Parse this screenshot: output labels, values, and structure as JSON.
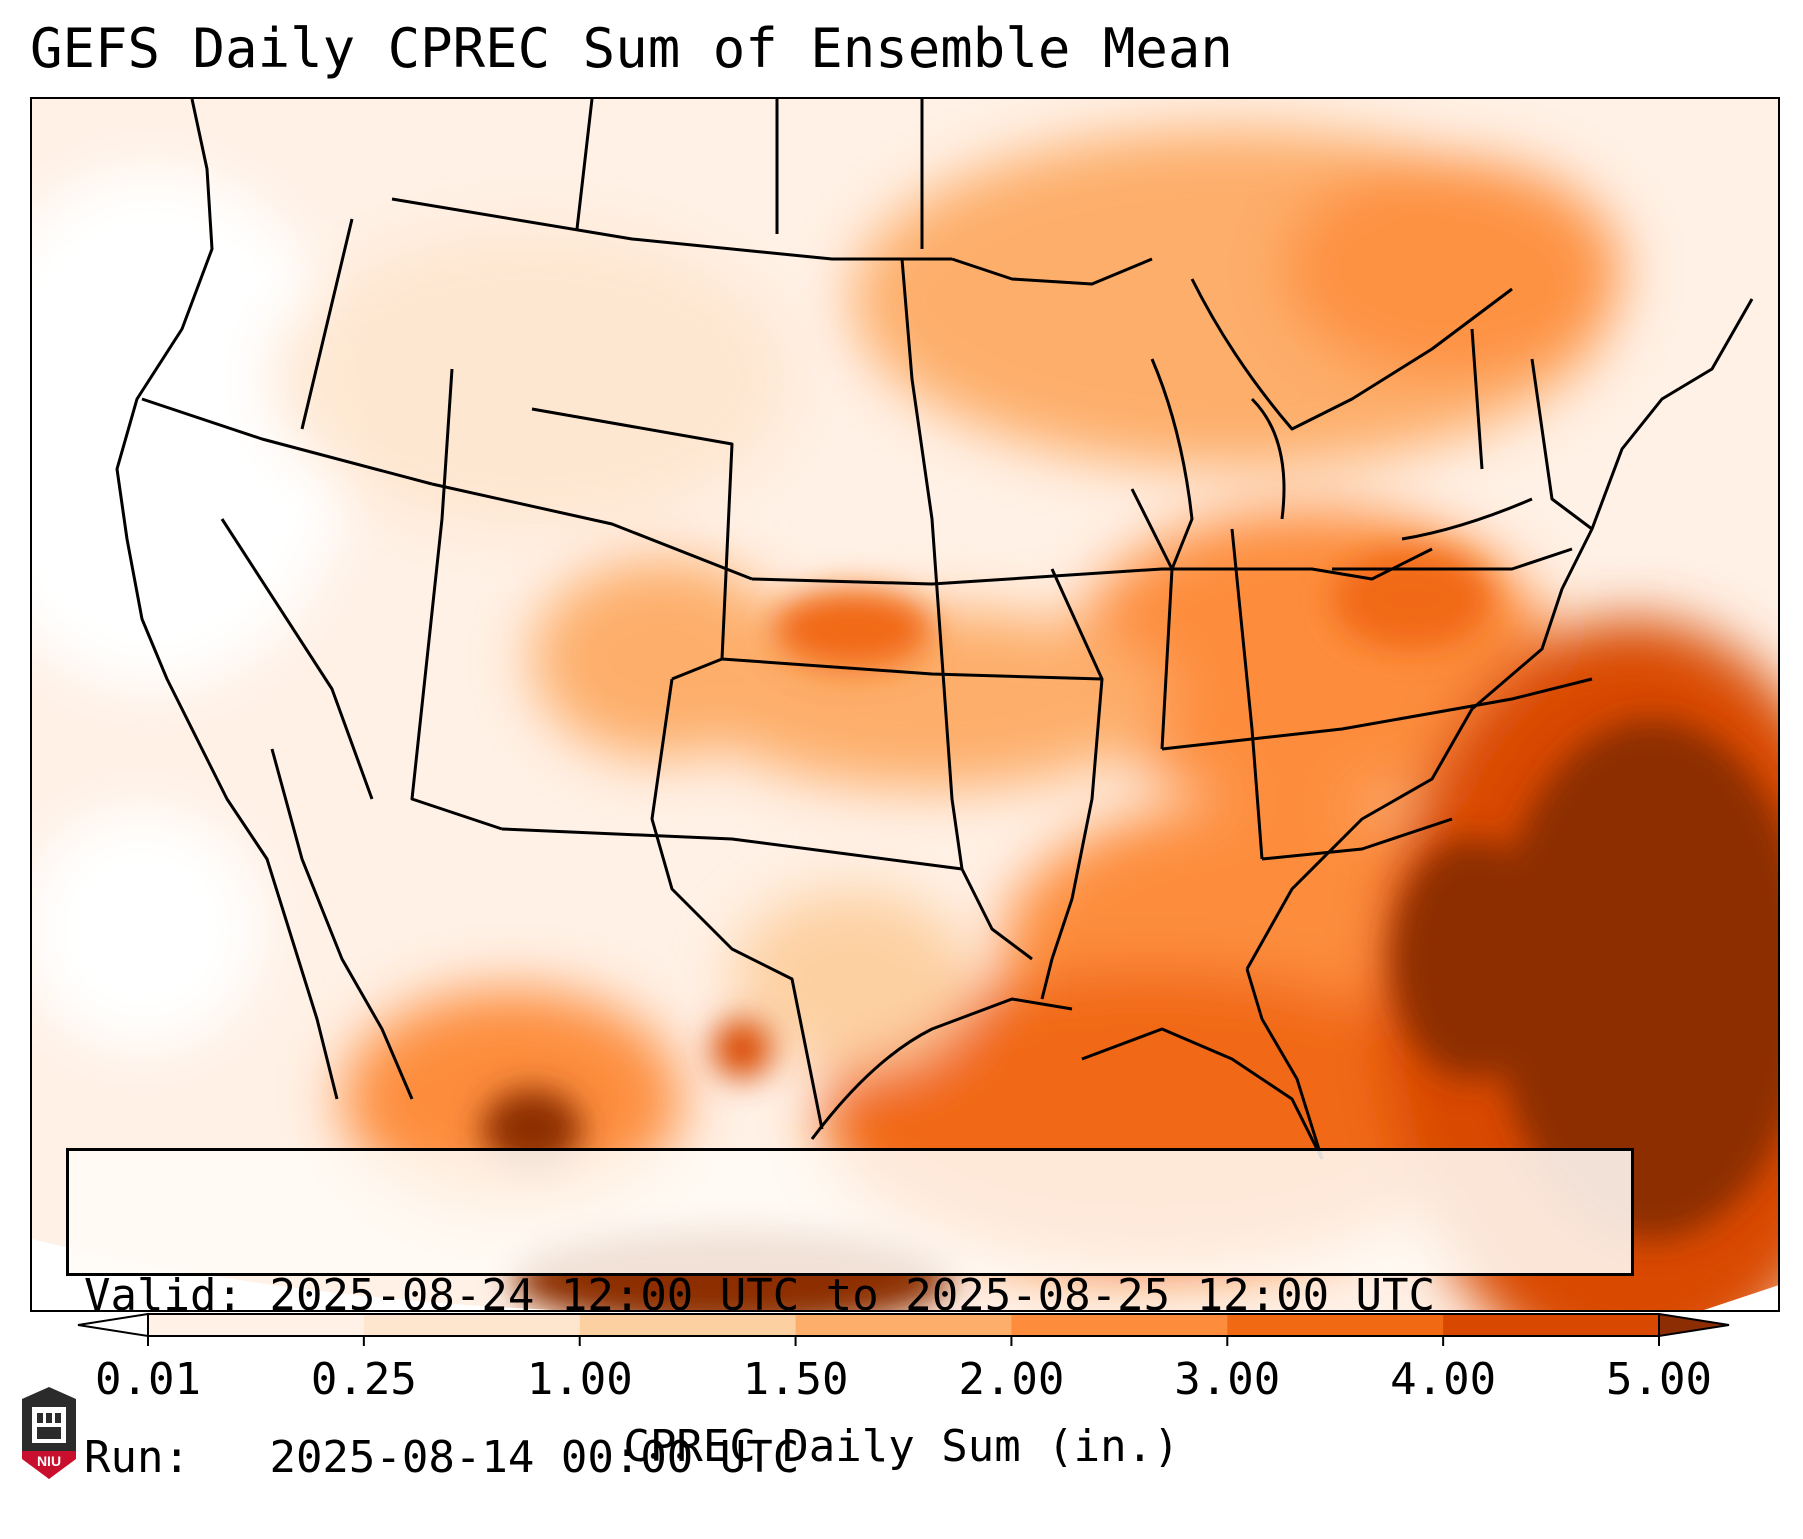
{
  "title": "GEFS Daily CPREC Sum of Ensemble Mean",
  "info": {
    "valid_label": "Valid:",
    "valid_value": "2025-08-24 12:00 UTC to 2025-08-25 12:00 UTC",
    "run_label": "Run:",
    "run_value": "2025-08-14 00:00 UTC"
  },
  "colorbar": {
    "label": "CPREC Daily Sum (in.)",
    "ticks": [
      "0.01",
      "0.25",
      "1.00",
      "1.50",
      "2.00",
      "3.00",
      "4.00",
      "5.00"
    ],
    "bins": [
      {
        "from": "0.01",
        "to": "0.25",
        "color": "#fff1e6"
      },
      {
        "from": "0.25",
        "to": "1.00",
        "color": "#fee6ce"
      },
      {
        "from": "1.00",
        "to": "1.50",
        "color": "#fdd0a2"
      },
      {
        "from": "1.50",
        "to": "2.00",
        "color": "#fdae6b"
      },
      {
        "from": "2.00",
        "to": "3.00",
        "color": "#fd8d3c"
      },
      {
        "from": "3.00",
        "to": "4.00",
        "color": "#f16913"
      },
      {
        "from": "4.00",
        "to": "5.00",
        "color": "#d94801"
      }
    ],
    "under_color": "#ffffff",
    "over_color": "#8c2d04"
  },
  "map": {
    "region": "Contiguous United States",
    "field": "CPREC"
  },
  "logo": {
    "text": "NIU",
    "color": "#c8102e"
  }
}
